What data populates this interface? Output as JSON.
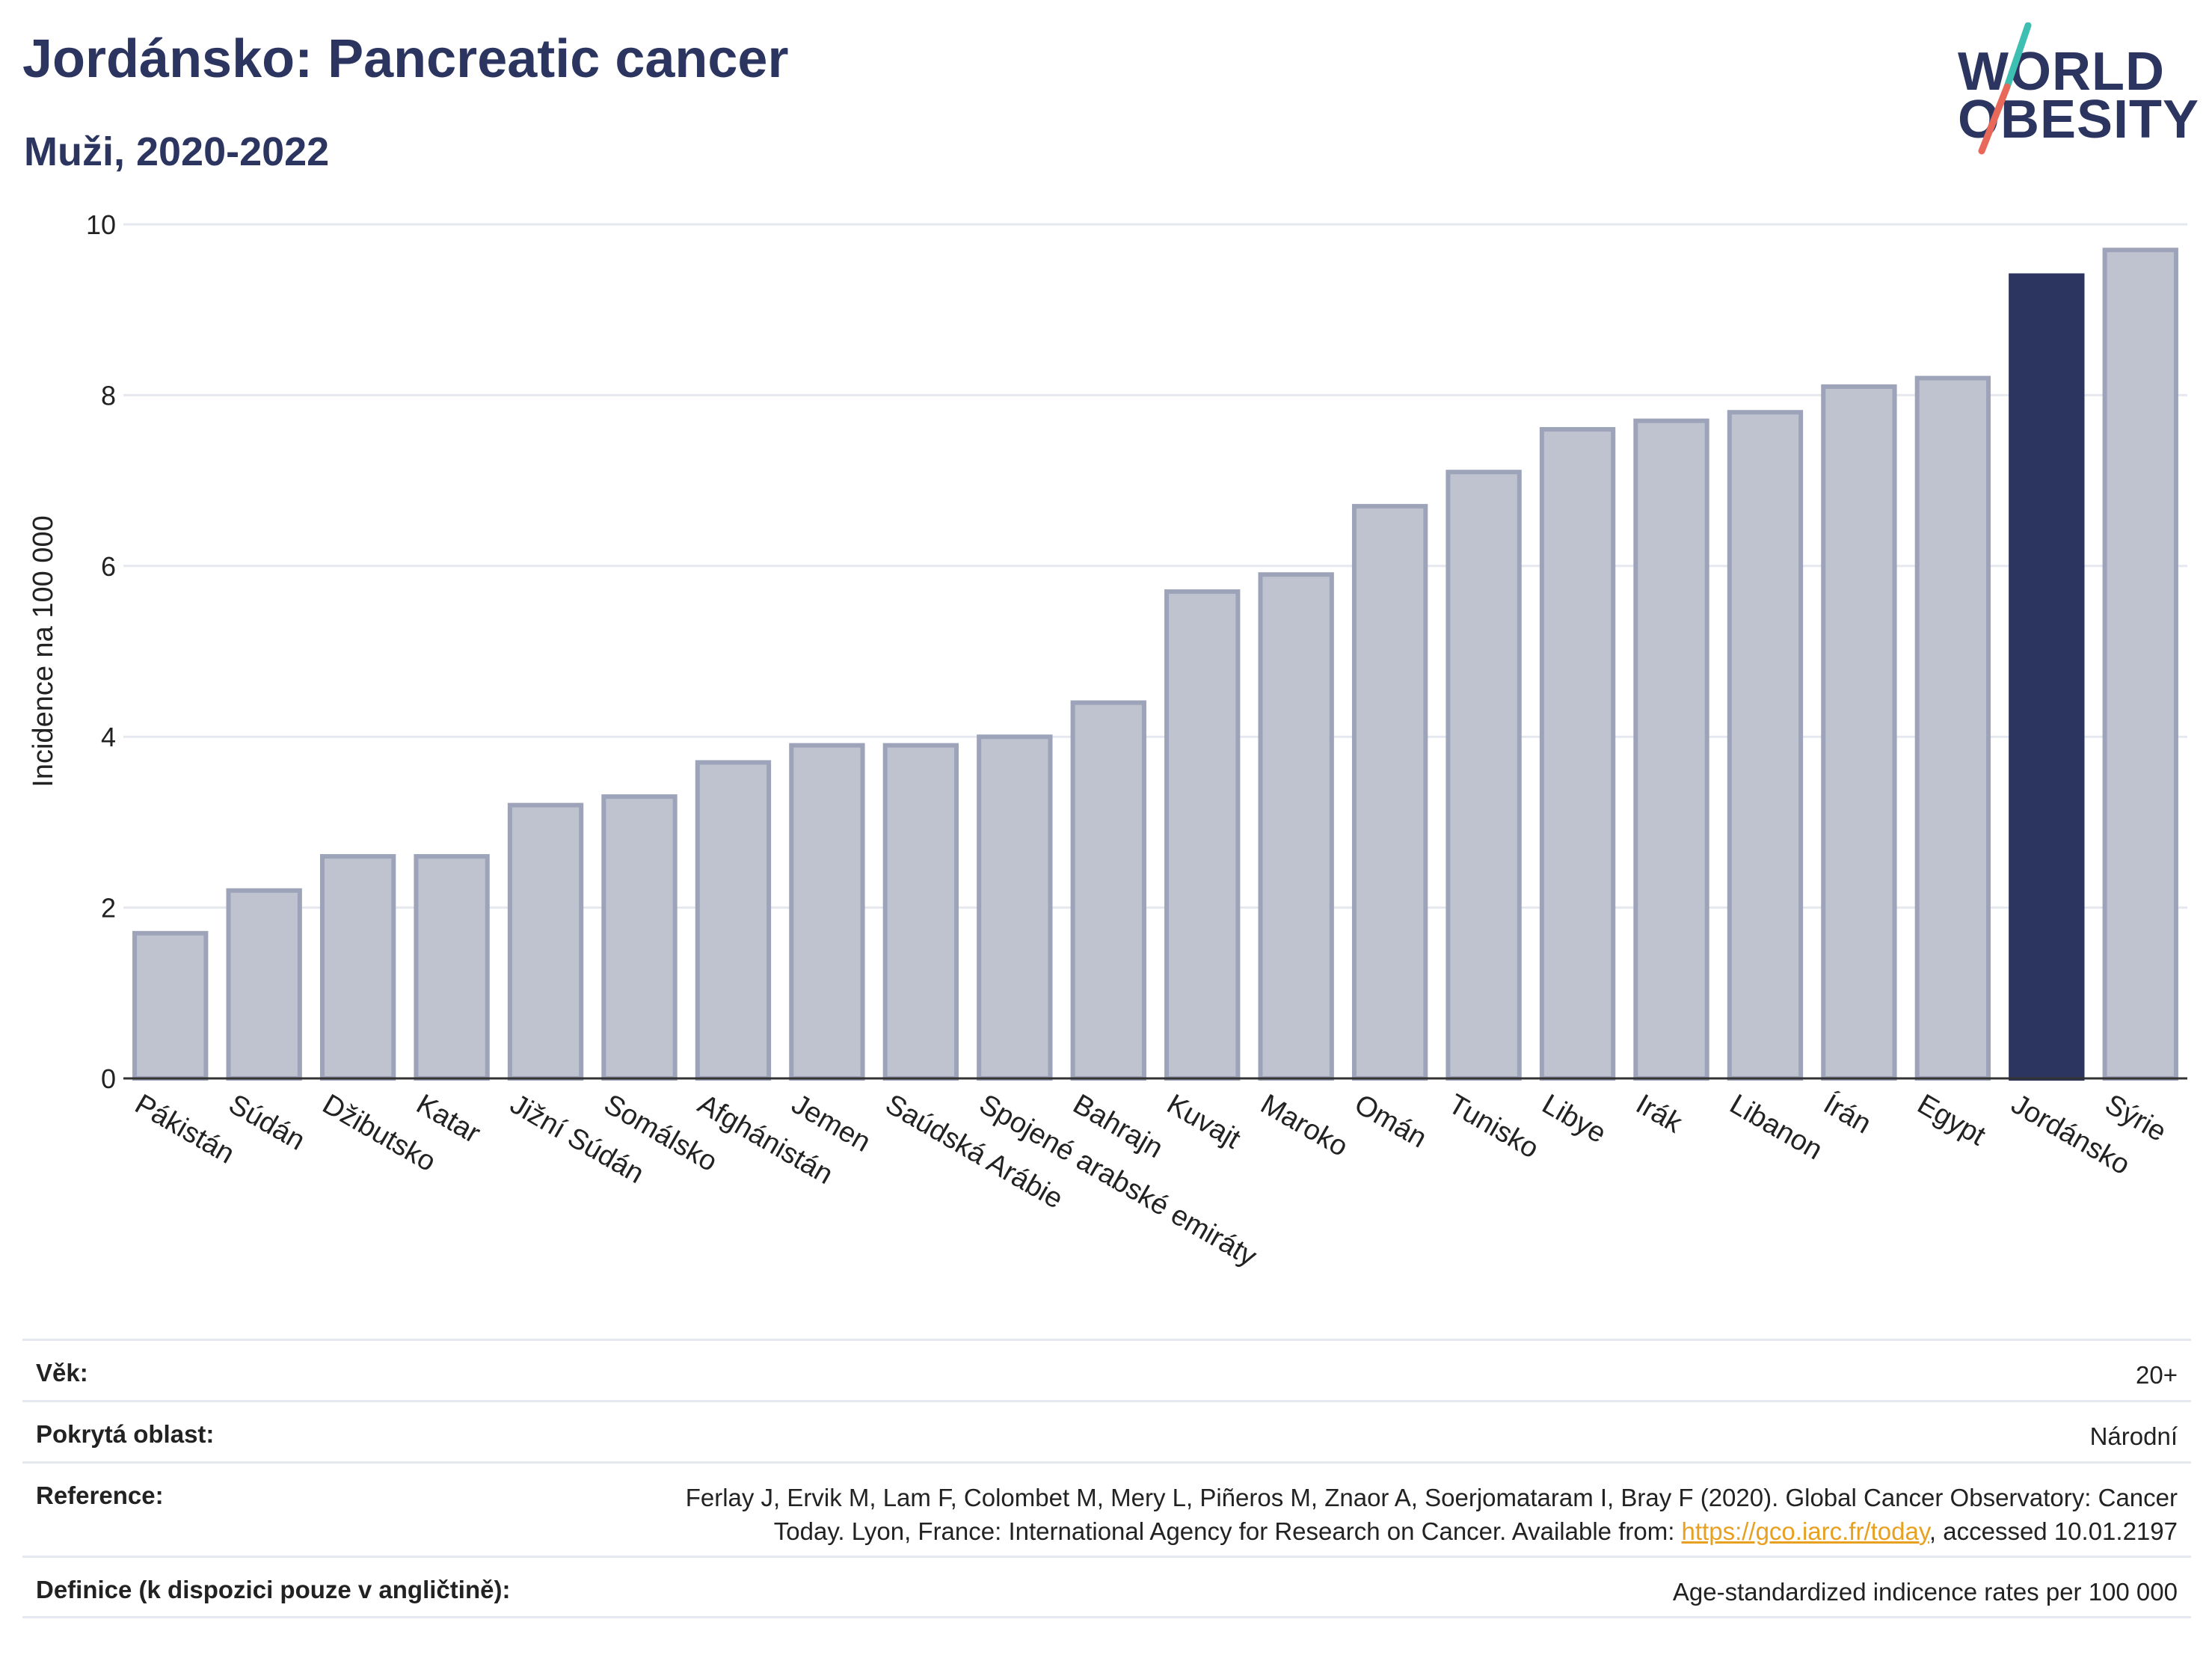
{
  "header": {
    "title": "Jordánsko: Pancreatic cancer",
    "subtitle": "Muži, 2020-2022"
  },
  "logo": {
    "line1": "WORLD",
    "line2": "OBESITY"
  },
  "chart_data": {
    "type": "bar",
    "ylabel": "Incidence na 100 000",
    "xlabel": "",
    "ylim": [
      0,
      10
    ],
    "yticks": [
      0,
      2,
      4,
      6,
      8,
      10
    ],
    "grid": true,
    "highlight": "Jordánsko",
    "colors": {
      "bar": "#bfc3d0",
      "bar_border": "#9da3b8",
      "highlight": "#2b3560",
      "grid": "#e6e8ef"
    },
    "categories": [
      "Pákistán",
      "Súdán",
      "Džibutsko",
      "Katar",
      "Jižní Súdán",
      "Somálsko",
      "Afghánistán",
      "Jemen",
      "Saúdská Arábie",
      "Spojené arabské emiráty",
      "Bahrajn",
      "Kuvajt",
      "Maroko",
      "Omán",
      "Tunisko",
      "Libye",
      "Irák",
      "Libanon",
      "Írán",
      "Egypt",
      "Jordánsko",
      "Sýrie"
    ],
    "values": [
      1.7,
      2.2,
      2.6,
      2.6,
      3.2,
      3.3,
      3.7,
      3.9,
      3.9,
      4.0,
      4.4,
      5.7,
      5.9,
      6.7,
      7.1,
      7.6,
      7.7,
      7.8,
      8.1,
      8.2,
      9.4,
      9.7
    ]
  },
  "info": {
    "age_label": "Věk:",
    "age_value": "20+",
    "coverage_label": "Pokrytá oblast:",
    "coverage_value": "Národní",
    "reference_label": "Reference:",
    "reference_line1": "Ferlay J, Ervik M, Lam F, Colombet M, Mery L, Piñeros M, Znaor A, Soerjomataram I, Bray F (2020). Global Cancer Observatory: Cancer",
    "reference_line2_pre": "Today. Lyon, France: International Agency for Research on Cancer. Available from: ",
    "reference_link": "https://gco.iarc.fr/today",
    "reference_line2_post": ", accessed 10.01.2197",
    "definition_label": "Definice (k dispozici pouze v angličtině):",
    "definition_value": "Age-standardized indicence rates per 100 000"
  }
}
